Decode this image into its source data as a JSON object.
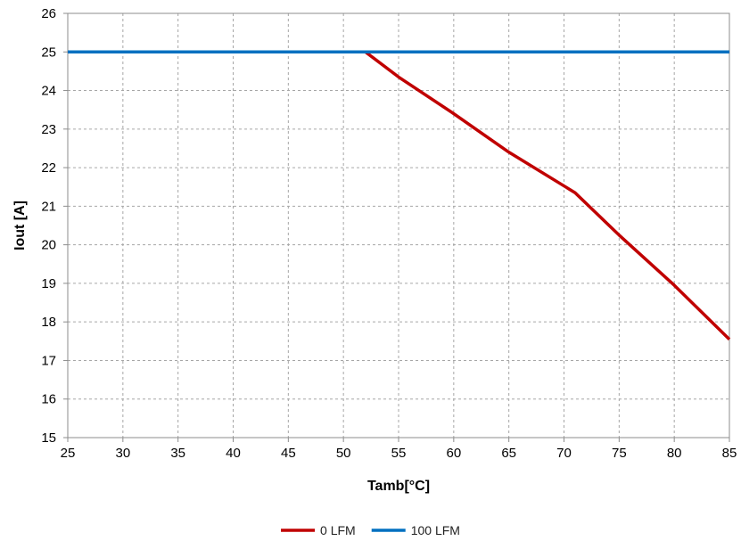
{
  "chart_data": {
    "type": "line",
    "title": "",
    "xlabel": "Tamb[°C]",
    "ylabel": "Iout [A]",
    "xlim": [
      25,
      85
    ],
    "ylim": [
      15,
      26
    ],
    "xticks": [
      25,
      30,
      35,
      40,
      45,
      50,
      55,
      60,
      65,
      70,
      75,
      80,
      85
    ],
    "yticks": [
      15,
      16,
      17,
      18,
      19,
      20,
      21,
      22,
      23,
      24,
      25,
      26
    ],
    "grid": true,
    "grid_style": "dashed",
    "legend_position": "bottom-center",
    "series": [
      {
        "name": "0 LFM",
        "color": "#c00000",
        "points": [
          [
            25,
            25
          ],
          [
            52,
            25
          ],
          [
            55,
            24.35
          ],
          [
            60,
            23.4
          ],
          [
            65,
            22.4
          ],
          [
            71,
            21.35
          ],
          [
            75,
            20.25
          ],
          [
            80,
            18.95
          ],
          [
            85,
            17.55
          ]
        ]
      },
      {
        "name": "100 LFM",
        "color": "#0070c0",
        "points": [
          [
            25,
            25
          ],
          [
            85,
            25
          ]
        ]
      }
    ]
  }
}
